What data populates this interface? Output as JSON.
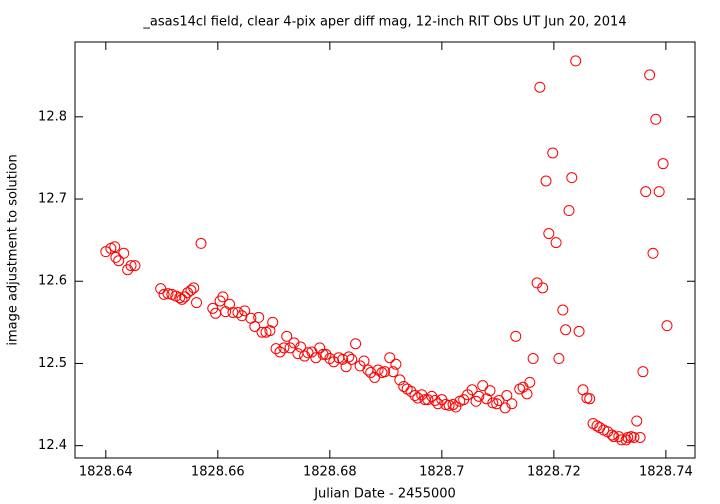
{
  "chart_data": {
    "type": "scatter",
    "title": "_asas14cl field, clear 4-pix aper diff mag,  12-inch RIT Obs UT Jun 20, 2014",
    "xlabel": "Julian Date - 2455000",
    "ylabel": "image adjustment to solution",
    "xlim": [
      1828.6345,
      1828.7452
    ],
    "ylim": [
      12.385,
      12.891
    ],
    "xticks": [
      1828.64,
      1828.66,
      1828.68,
      1828.7,
      1828.72,
      1828.74
    ],
    "yticks": [
      12.4,
      12.5,
      12.6,
      12.7,
      12.8
    ],
    "color": "#ff0000",
    "x": [
      1828.64,
      1828.6409,
      1828.6416,
      1828.6418,
      1828.6423,
      1828.6432,
      1828.6439,
      1828.6445,
      1828.6452,
      1828.6498,
      1828.6504,
      1828.6511,
      1828.6518,
      1828.6525,
      1828.6532,
      1828.6536,
      1828.6541,
      1828.6546,
      1828.6552,
      1828.6557,
      1828.6562,
      1828.657,
      1828.6591,
      1828.6596,
      1828.6604,
      1828.6609,
      1828.6614,
      1828.6621,
      1828.6627,
      1828.6636,
      1828.6643,
      1828.6648,
      1828.6659,
      1828.6666,
      1828.6673,
      1828.6679,
      1828.6686,
      1828.6693,
      1828.6698,
      1828.6704,
      1828.6711,
      1828.6718,
      1828.6723,
      1828.6729,
      1828.6736,
      1828.6743,
      1828.6748,
      1828.6755,
      1828.6761,
      1828.6768,
      1828.6775,
      1828.6782,
      1828.6788,
      1828.6793,
      1828.68,
      1828.6807,
      1828.6816,
      1828.6823,
      1828.6829,
      1828.6834,
      1828.6839,
      1828.6846,
      1828.6854,
      1828.6861,
      1828.6868,
      1828.6873,
      1828.688,
      1828.6886,
      1828.6893,
      1828.6898,
      1828.6907,
      1828.6913,
      1828.6918,
      1828.6925,
      1828.6932,
      1828.6938,
      1828.6945,
      1828.6952,
      1828.6957,
      1828.6964,
      1828.697,
      1828.6975,
      1828.6982,
      1828.6988,
      1828.6993,
      1828.7,
      1828.7007,
      1828.7013,
      1828.702,
      1828.7025,
      1828.7032,
      1828.7039,
      1828.7046,
      1828.7054,
      1828.7061,
      1828.7066,
      1828.7073,
      1828.708,
      1828.7086,
      1828.7091,
      1828.7098,
      1828.7102,
      1828.7113,
      1828.7116,
      1828.7125,
      1828.7132,
      1828.7139,
      1828.7145,
      1828.7152,
      1828.7157,
      1828.7163,
      1828.717,
      1828.7175,
      1828.718,
      1828.7186,
      1828.7191,
      1828.7198,
      1828.7204,
      1828.7209,
      1828.7216,
      1828.7221,
      1828.7227,
      1828.7232,
      1828.7239,
      1828.7245,
      1828.7252,
      1828.7259,
      1828.7264,
      1828.727,
      1828.7277,
      1828.7282,
      1828.7289,
      1828.7296,
      1828.7304,
      1828.7307,
      1828.7316,
      1828.7321,
      1828.7329,
      1828.7332,
      1828.7338,
      1828.7343,
      1828.7348,
      1828.7354,
      1828.7359,
      1828.7364,
      1828.7371,
      1828.7377,
      1828.7382,
      1828.7388,
      1828.7395,
      1828.7402
    ],
    "values": [
      12.636,
      12.64,
      12.642,
      12.629,
      12.625,
      12.634,
      12.614,
      12.619,
      12.619,
      12.591,
      12.584,
      12.585,
      12.584,
      12.582,
      12.58,
      12.578,
      12.581,
      12.586,
      12.589,
      12.592,
      12.574,
      12.646,
      12.567,
      12.561,
      12.576,
      12.581,
      12.563,
      12.572,
      12.562,
      12.562,
      12.558,
      12.564,
      12.555,
      12.545,
      12.556,
      12.538,
      12.538,
      12.54,
      12.55,
      12.518,
      12.514,
      12.519,
      12.533,
      12.519,
      12.525,
      12.512,
      12.52,
      12.509,
      12.513,
      12.514,
      12.507,
      12.519,
      12.511,
      12.511,
      12.506,
      12.502,
      12.507,
      12.505,
      12.496,
      12.508,
      12.505,
      12.524,
      12.497,
      12.503,
      12.492,
      12.489,
      12.483,
      12.492,
      12.489,
      12.49,
      12.507,
      12.49,
      12.499,
      12.48,
      12.472,
      12.469,
      12.466,
      12.461,
      12.458,
      12.462,
      12.456,
      12.456,
      12.46,
      12.455,
      12.451,
      12.456,
      12.45,
      12.449,
      12.45,
      12.447,
      12.454,
      12.456,
      12.462,
      12.468,
      12.454,
      12.46,
      12.473,
      12.457,
      12.467,
      12.452,
      12.451,
      12.455,
      12.446,
      12.461,
      12.451,
      12.533,
      12.469,
      12.471,
      12.463,
      12.477,
      12.506,
      12.598,
      12.836,
      12.592,
      12.722,
      12.658,
      12.756,
      12.647,
      12.506,
      12.565,
      12.541,
      12.686,
      12.726,
      12.868,
      12.539,
      12.468,
      12.458,
      12.457,
      12.427,
      12.424,
      12.422,
      12.419,
      12.417,
      12.413,
      12.411,
      12.411,
      12.407,
      12.407,
      12.41,
      12.411,
      12.41,
      12.43,
      12.41,
      12.49,
      12.709,
      12.851,
      12.634,
      12.797,
      12.709,
      12.743,
      12.546
    ]
  }
}
